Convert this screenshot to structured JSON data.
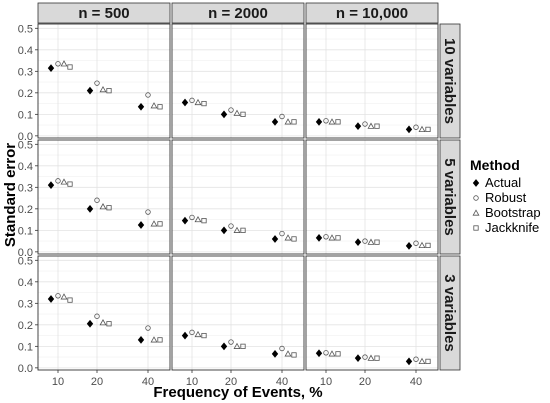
{
  "chart_data": {
    "type": "scatter",
    "xlabel": "Frequency of Events, %",
    "ylabel": "Standard error",
    "x_ticks": [
      10,
      20,
      40
    ],
    "x_tick_labels": [
      "10",
      "20",
      "40"
    ],
    "y_ticks": [
      0.0,
      0.1,
      0.2,
      0.3,
      0.4,
      0.5
    ],
    "y_tick_labels": [
      "0.0",
      "0.1",
      "0.2",
      "0.3",
      "0.4",
      "0.5"
    ],
    "ylim": [
      -0.01,
      0.52
    ],
    "grid": true,
    "col_facets": [
      "n = 500",
      "n = 2000",
      "n = 10,000"
    ],
    "row_facets": [
      "10 variables",
      "5 variables",
      "3 variables"
    ],
    "legend": {
      "title": "Method",
      "position": "right",
      "entries": [
        "Actual",
        "Robust",
        "Bootstrap",
        "Jackknife"
      ]
    },
    "series": [
      {
        "name": "Actual",
        "marker": "diamond-filled",
        "values": [
          [
            [
              0.315,
              0.21,
              0.135
            ],
            [
              0.155,
              0.1,
              0.065
            ],
            [
              0.065,
              0.045,
              0.03
            ]
          ],
          [
            [
              0.31,
              0.2,
              0.125
            ],
            [
              0.145,
              0.1,
              0.06
            ],
            [
              0.065,
              0.045,
              0.028
            ]
          ],
          [
            [
              0.32,
              0.205,
              0.13
            ],
            [
              0.15,
              0.1,
              0.065
            ],
            [
              0.068,
              0.045,
              0.03
            ]
          ]
        ]
      },
      {
        "name": "Robust",
        "marker": "circle-open",
        "values": [
          [
            [
              0.335,
              0.245,
              0.19
            ],
            [
              0.165,
              0.12,
              0.09
            ],
            [
              0.07,
              0.055,
              0.04
            ]
          ],
          [
            [
              0.33,
              0.24,
              0.185
            ],
            [
              0.16,
              0.12,
              0.085
            ],
            [
              0.07,
              0.05,
              0.04
            ]
          ],
          [
            [
              0.335,
              0.24,
              0.185
            ],
            [
              0.165,
              0.12,
              0.09
            ],
            [
              0.07,
              0.05,
              0.04
            ]
          ]
        ]
      },
      {
        "name": "Bootstrap",
        "marker": "triangle-open",
        "values": [
          [
            [
              0.335,
              0.215,
              0.14
            ],
            [
              0.155,
              0.105,
              0.065
            ],
            [
              0.065,
              0.045,
              0.03
            ]
          ],
          [
            [
              0.325,
              0.21,
              0.13
            ],
            [
              0.15,
              0.1,
              0.065
            ],
            [
              0.065,
              0.045,
              0.03
            ]
          ],
          [
            [
              0.33,
              0.21,
              0.13
            ],
            [
              0.155,
              0.1,
              0.065
            ],
            [
              0.065,
              0.045,
              0.03
            ]
          ]
        ]
      },
      {
        "name": "Jackknife",
        "marker": "square-open",
        "values": [
          [
            [
              0.32,
              0.21,
              0.135
            ],
            [
              0.15,
              0.1,
              0.065
            ],
            [
              0.065,
              0.045,
              0.03
            ]
          ],
          [
            [
              0.315,
              0.205,
              0.13
            ],
            [
              0.145,
              0.1,
              0.06
            ],
            [
              0.065,
              0.045,
              0.03
            ]
          ],
          [
            [
              0.315,
              0.205,
              0.13
            ],
            [
              0.15,
              0.1,
              0.06
            ],
            [
              0.065,
              0.045,
              0.03
            ]
          ]
        ]
      }
    ]
  }
}
